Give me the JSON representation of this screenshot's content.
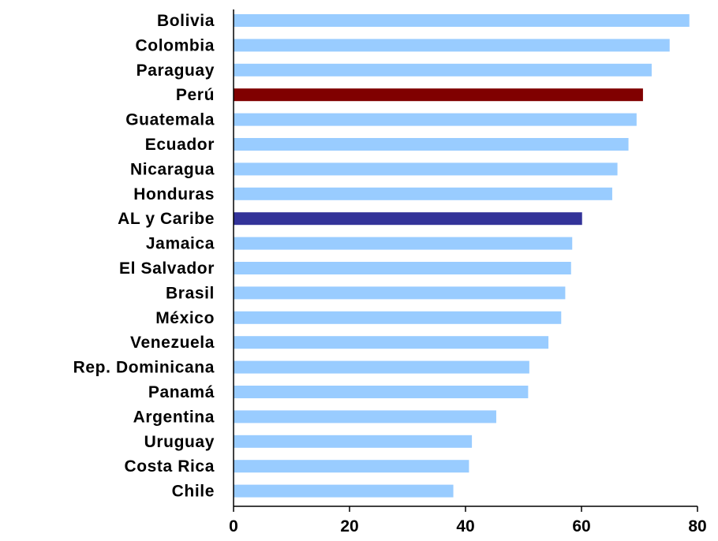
{
  "chart_data": {
    "type": "bar",
    "orientation": "horizontal",
    "title": "",
    "xlabel": "",
    "ylabel": "",
    "xlim": [
      0,
      80
    ],
    "x_ticks": [
      0,
      20,
      40,
      60,
      80
    ],
    "grid": false,
    "legend": "none",
    "categories": [
      "Bolivia",
      "Colombia",
      "Paraguay",
      "Perú",
      "Guatemala",
      "Ecuador",
      "Nicaragua",
      "Honduras",
      "AL y Caribe",
      "Jamaica",
      "El Salvador",
      "Brasil",
      "México",
      "Venezuela",
      "Rep. Dominicana",
      "Panamá",
      "Argentina",
      "Uruguay",
      "Costa Rica",
      "Chile"
    ],
    "values": [
      78.6,
      75.2,
      72.1,
      70.6,
      69.5,
      68.1,
      66.2,
      65.3,
      60.1,
      58.4,
      58.2,
      57.2,
      56.5,
      54.3,
      51.0,
      50.8,
      45.3,
      41.1,
      40.6,
      37.9
    ],
    "colors": {
      "default": "#99CCFF",
      "Perú": "#800000",
      "AL y Caribe": "#333399"
    },
    "axis_color": "#000000"
  }
}
